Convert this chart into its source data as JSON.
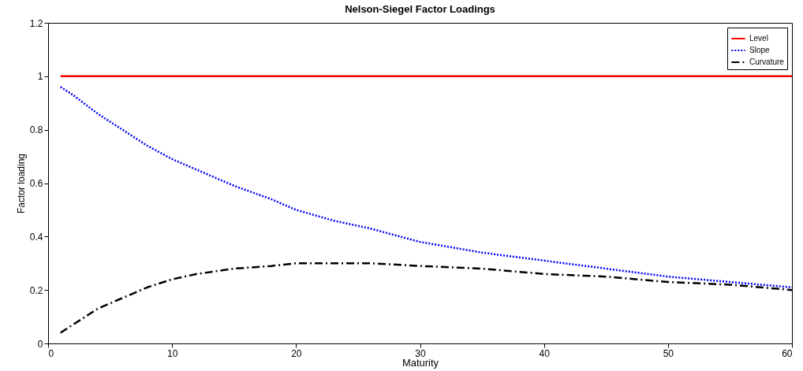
{
  "chart_data": {
    "type": "line",
    "title": "Nelson-Siegel Factor Loadings",
    "xlabel": "Maturity",
    "ylabel": "Factor loading",
    "xlim": [
      0,
      60
    ],
    "xticks": [
      0,
      10,
      20,
      30,
      40,
      50,
      60
    ],
    "ylim": [
      0,
      1.2
    ],
    "yticks": [
      0,
      0.2,
      0.4,
      0.6,
      0.8,
      1,
      1.2
    ],
    "grid": false,
    "legend": "top right",
    "x": [
      1,
      2,
      4,
      6,
      8,
      10,
      12,
      15,
      18,
      20,
      23,
      26,
      30,
      35,
      40,
      45,
      50,
      55,
      60
    ],
    "series": [
      {
        "name": "Level",
        "color": "#ff0000",
        "line_style": "solid",
        "values": [
          1,
          1,
          1,
          1,
          1,
          1,
          1,
          1,
          1,
          1,
          1,
          1,
          1,
          1,
          1,
          1,
          1,
          1,
          1
        ]
      },
      {
        "name": "Slope",
        "color": "#0000ff",
        "line_style": "dotted",
        "values": [
          0.96,
          0.93,
          0.86,
          0.8,
          0.74,
          0.69,
          0.65,
          0.59,
          0.54,
          0.5,
          0.46,
          0.43,
          0.38,
          0.34,
          0.31,
          0.28,
          0.25,
          0.23,
          0.21
        ]
      },
      {
        "name": "Curvature",
        "color": "#000000",
        "line_style": "dashed",
        "values": [
          0.04,
          0.07,
          0.13,
          0.17,
          0.21,
          0.24,
          0.26,
          0.28,
          0.29,
          0.3,
          0.3,
          0.3,
          0.29,
          0.28,
          0.26,
          0.25,
          0.23,
          0.22,
          0.2
        ]
      }
    ]
  }
}
